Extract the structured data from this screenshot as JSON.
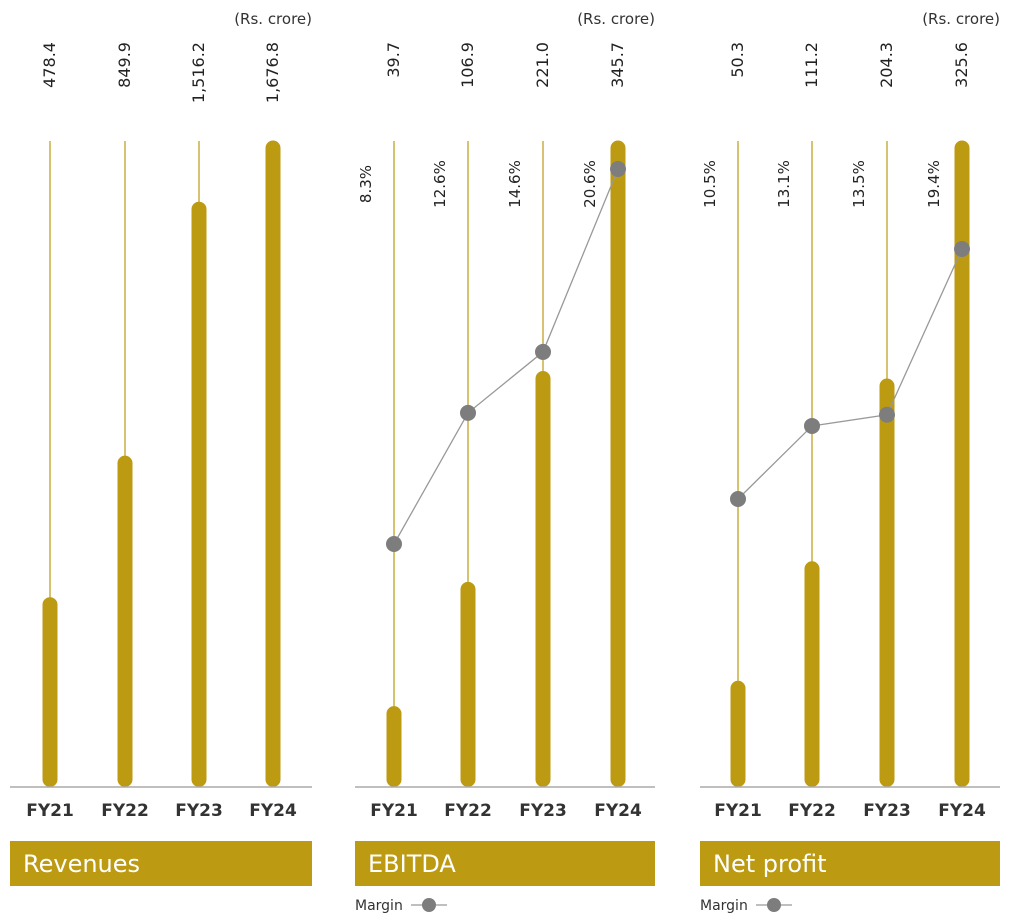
{
  "colors": {
    "bar": "#bc9a12",
    "marker": "#7d7d7d",
    "line": "#999999",
    "highlight": "#bc9a12",
    "text": "#333333"
  },
  "chart_data": [
    {
      "type": "bar",
      "title": "Revenues",
      "unit": "(Rs. crore)",
      "categories": [
        "FY21",
        "FY22",
        "FY23",
        "FY24"
      ],
      "highlight_category": "",
      "series": [
        {
          "values": [
            478.4,
            849.9,
            1516.2,
            1676.8
          ]
        }
      ],
      "value_labels": [
        "478.4",
        "849.9",
        "1,516.2",
        "1,676.8"
      ],
      "margin": null
    },
    {
      "type": "bar",
      "title": "EBITDA",
      "unit": "(Rs. crore)",
      "categories": [
        "FY21",
        "FY22",
        "FY23",
        "FY24"
      ],
      "highlight_category": "FY24",
      "series": [
        {
          "values": [
            39.7,
            106.9,
            221.0,
            345.7
          ]
        }
      ],
      "value_labels": [
        "39.7",
        "106.9",
        "221.0",
        "345.7"
      ],
      "margin": {
        "name": "Margin",
        "values": [
          8.3,
          12.6,
          14.6,
          20.6
        ],
        "labels": [
          "8.3%",
          "12.6%",
          "14.6%",
          "20.6%"
        ]
      }
    },
    {
      "type": "bar",
      "title": "Net profit",
      "unit": "(Rs. crore)",
      "categories": [
        "FY21",
        "FY22",
        "FY23",
        "FY24"
      ],
      "highlight_category": "FY24",
      "series": [
        {
          "values": [
            50.3,
            111.2,
            204.3,
            325.6
          ]
        }
      ],
      "value_labels": [
        "50.3",
        "111.2",
        "204.3",
        "325.6"
      ],
      "margin": {
        "name": "Margin",
        "values": [
          10.5,
          13.1,
          13.5,
          19.4
        ],
        "labels": [
          "10.5%",
          "13.1%",
          "13.5%",
          "19.4%"
        ]
      }
    }
  ]
}
